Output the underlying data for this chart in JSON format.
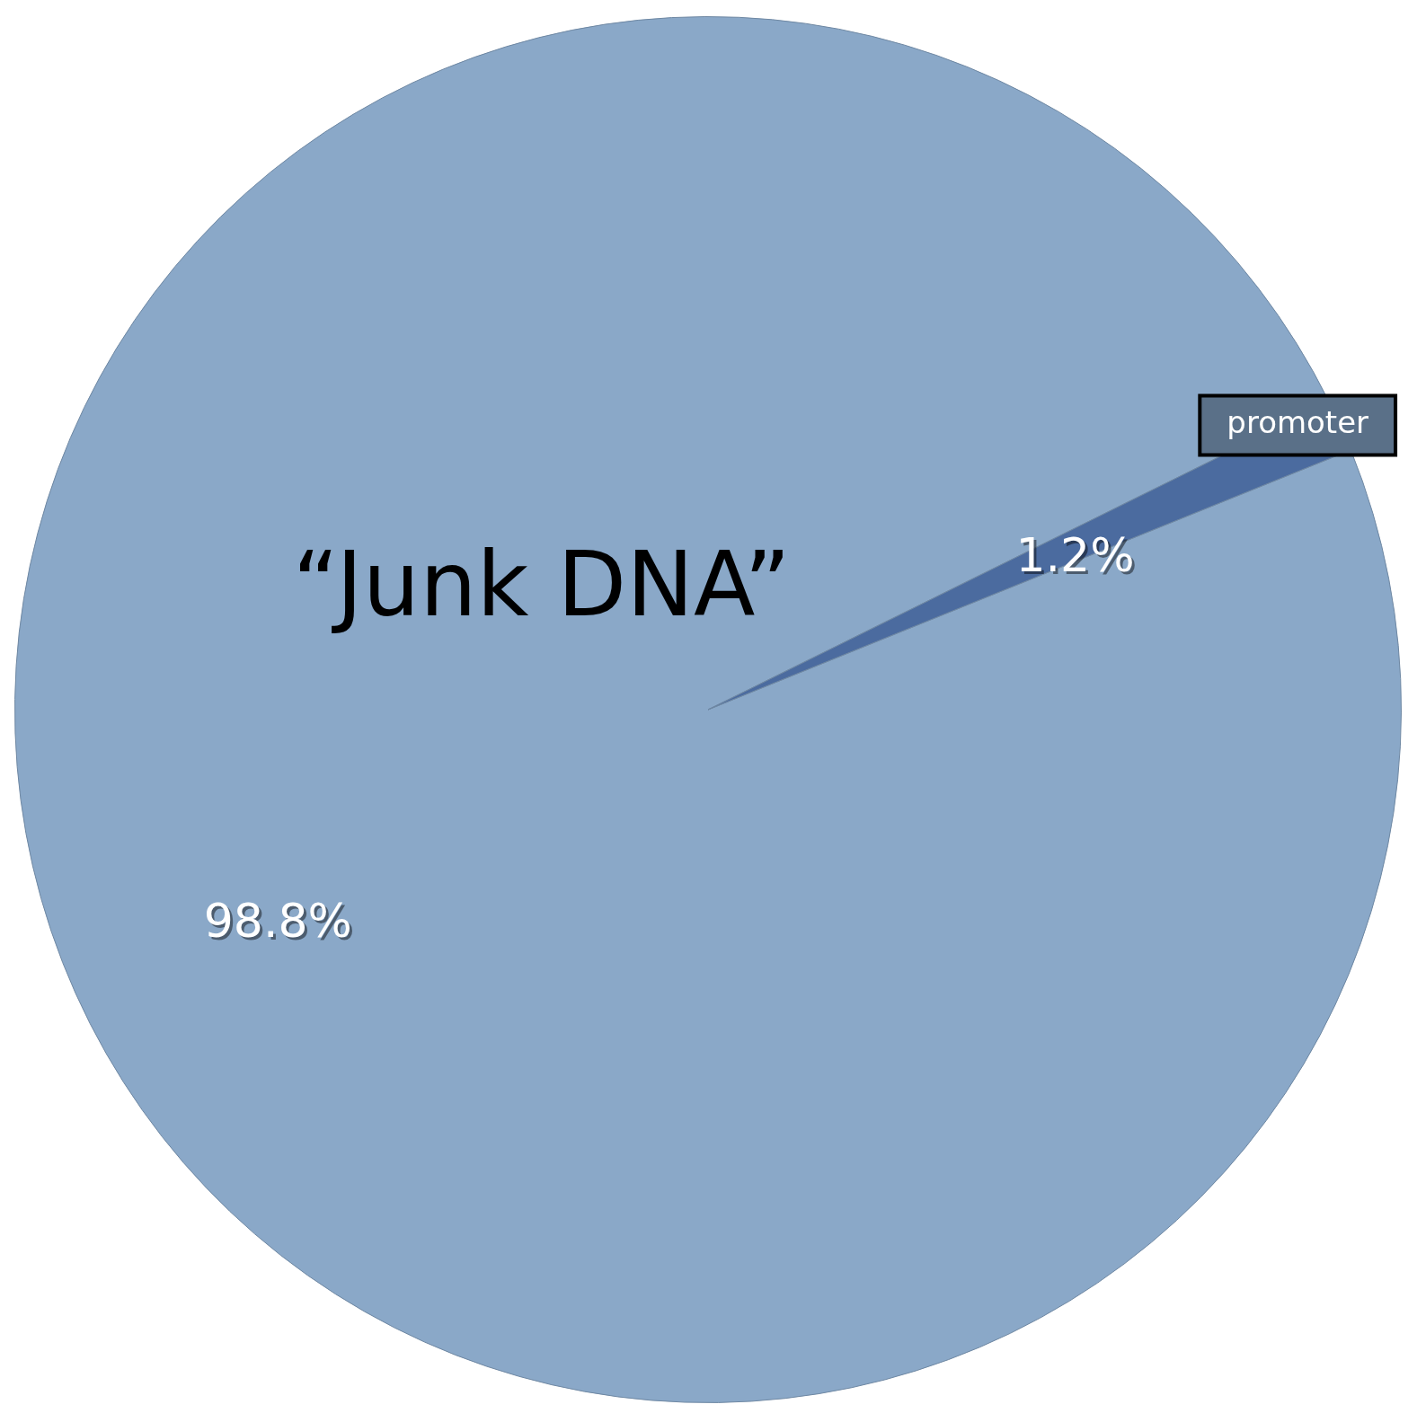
{
  "chart_data": {
    "type": "pie",
    "categories": [
      "“Junk DNA”",
      "promoter"
    ],
    "values": [
      98.8,
      1.2
    ],
    "value_labels": [
      "98.8%",
      "1.2%"
    ],
    "colors": [
      "#8aa8c8",
      "#4b6b9f"
    ],
    "legend": false
  }
}
